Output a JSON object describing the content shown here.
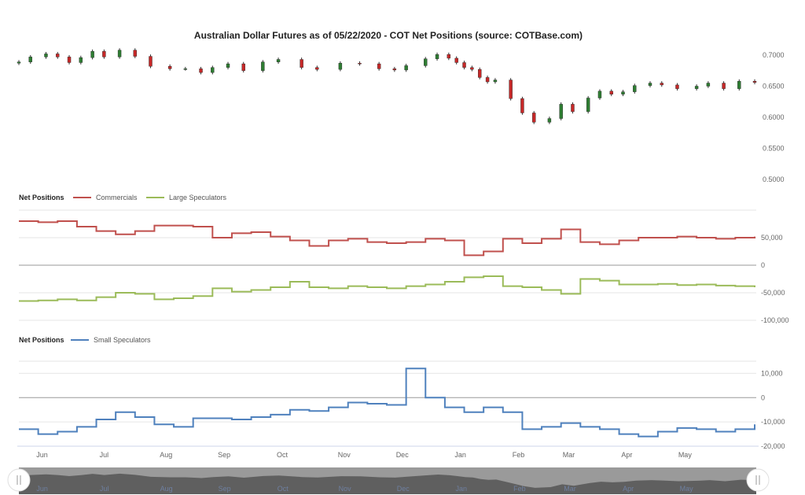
{
  "chart_data": [
    {
      "type": "candlestick",
      "title": "Australian Dollar Futures as of 05/22/2020 - COT Net Positions (source: COTBase.com)",
      "y_ticks": [
        "0.7000",
        "0.6500",
        "0.6000",
        "0.5500",
        "0.5000"
      ],
      "ylim": [
        0.5,
        0.7
      ],
      "up_color": "#2e7d32",
      "down_color": "#c62828",
      "x": [
        0,
        0.3,
        0.7,
        1,
        1.3,
        1.6,
        1.9,
        2.2,
        2.6,
        3,
        3.4,
        3.9,
        4.3,
        4.7,
        5,
        5.4,
        5.8,
        6.3,
        6.7,
        7.3,
        7.7,
        8.3,
        8.8,
        9.3,
        9.7,
        10,
        10.5,
        10.8,
        11.1,
        11.3,
        11.5,
        11.7,
        11.9,
        12.1,
        12.3,
        12.7,
        13,
        13.3,
        13.7,
        14,
        14.3,
        14.7,
        15,
        15.3,
        15.6,
        15.9,
        16.3,
        16.6,
        17,
        17.5,
        17.8,
        18.2,
        18.6,
        19
      ],
      "close": [
        0.689,
        0.697,
        0.702,
        0.697,
        0.688,
        0.696,
        0.706,
        0.697,
        0.708,
        0.698,
        0.682,
        0.678,
        0.678,
        0.672,
        0.68,
        0.686,
        0.675,
        0.689,
        0.693,
        0.68,
        0.677,
        0.687,
        0.686,
        0.678,
        0.676,
        0.683,
        0.694,
        0.701,
        0.695,
        0.688,
        0.68,
        0.677,
        0.664,
        0.657,
        0.66,
        0.63,
        0.607,
        0.592,
        0.598,
        0.621,
        0.609,
        0.631,
        0.642,
        0.637,
        0.641,
        0.651,
        0.655,
        0.652,
        0.646,
        0.65,
        0.655,
        0.646,
        0.658,
        0.656
      ]
    },
    {
      "type": "line",
      "legend_title": "Net Positions",
      "y_ticks": [
        "50,000",
        "0",
        "-50,000",
        "-100,000"
      ],
      "ylim": [
        -100000,
        100000
      ],
      "series": [
        {
          "name": "Commercials",
          "color": "#c0504d",
          "x": [
            0,
            0.5,
            1,
            1.5,
            2,
            2.5,
            3,
            3.5,
            4,
            4.5,
            5,
            5.5,
            6,
            6.5,
            7,
            7.5,
            8,
            8.5,
            9,
            9.5,
            10,
            10.5,
            11,
            11.5,
            12,
            12.5,
            13,
            13.5,
            14,
            14.5,
            15,
            15.5,
            16,
            16.5,
            17,
            17.5,
            18,
            18.5,
            19
          ],
          "y": [
            80000,
            78000,
            80000,
            70000,
            62000,
            56000,
            62000,
            72000,
            72000,
            70000,
            50000,
            58000,
            60000,
            52000,
            45000,
            35000,
            45000,
            48000,
            42000,
            40000,
            42000,
            48000,
            45000,
            18000,
            25000,
            48000,
            40000,
            48000,
            65000,
            42000,
            38000,
            45000,
            50000,
            50000,
            52000,
            50000,
            48000,
            50000,
            52000
          ]
        },
        {
          "name": "Large Speculators",
          "color": "#9bbb59",
          "x": [
            0,
            0.5,
            1,
            1.5,
            2,
            2.5,
            3,
            3.5,
            4,
            4.5,
            5,
            5.5,
            6,
            6.5,
            7,
            7.5,
            8,
            8.5,
            9,
            9.5,
            10,
            10.5,
            11,
            11.5,
            12,
            12.5,
            13,
            13.5,
            14,
            14.5,
            15,
            15.5,
            16,
            16.5,
            17,
            17.5,
            18,
            18.5,
            19
          ],
          "y": [
            -65000,
            -64000,
            -62000,
            -64000,
            -58000,
            -50000,
            -52000,
            -62000,
            -60000,
            -56000,
            -42000,
            -48000,
            -45000,
            -40000,
            -30000,
            -40000,
            -42000,
            -38000,
            -40000,
            -42000,
            -38000,
            -35000,
            -30000,
            -22000,
            -20000,
            -38000,
            -40000,
            -45000,
            -52000,
            -25000,
            -28000,
            -35000,
            -35000,
            -34000,
            -36000,
            -35000,
            -37000,
            -38000,
            -40000
          ]
        }
      ]
    },
    {
      "type": "line",
      "legend_title": "Net Positions",
      "y_ticks": [
        "10,000",
        "0",
        "-10,000",
        "-20,000"
      ],
      "ylim": [
        -20000,
        15000
      ],
      "series": [
        {
          "name": "Small Speculators",
          "color": "#4f81bd",
          "x": [
            0,
            0.5,
            1,
            1.5,
            2,
            2.5,
            3,
            3.5,
            4,
            4.5,
            5,
            5.5,
            6,
            6.5,
            7,
            7.5,
            8,
            8.5,
            9,
            9.5,
            10,
            10.5,
            11,
            11.5,
            12,
            12.5,
            13,
            13.5,
            14,
            14.5,
            15,
            15.5,
            16,
            16.5,
            17,
            17.5,
            18,
            18.5,
            19
          ],
          "y": [
            -13000,
            -15000,
            -14000,
            -12000,
            -9000,
            -6000,
            -8000,
            -11000,
            -12000,
            -8500,
            -8500,
            -9000,
            -8000,
            -7000,
            -5000,
            -5500,
            -4000,
            -2000,
            -2500,
            -3000,
            12000,
            0,
            -4000,
            -6000,
            -4000,
            -6000,
            -13000,
            -12000,
            -10500,
            -12000,
            -13000,
            -15000,
            -16000,
            -14000,
            -12500,
            -13000,
            -14000,
            -13000,
            -11000
          ]
        }
      ]
    }
  ],
  "x_axis": {
    "months": [
      "Jun",
      "Jul",
      "Aug",
      "Sep",
      "Oct",
      "Nov",
      "Dec",
      "Jan",
      "Feb",
      "Mar",
      "Apr",
      "May"
    ],
    "positions": [
      0.6,
      2.2,
      3.8,
      5.3,
      6.8,
      8.4,
      9.9,
      11.4,
      12.9,
      14.2,
      15.7,
      17.2
    ],
    "range": [
      0,
      19
    ]
  },
  "navigator": {
    "months": [
      "Jun",
      "Jul",
      "Aug",
      "Sep",
      "Oct",
      "Nov",
      "Dec",
      "Jan",
      "Feb",
      "Mar",
      "Apr",
      "May"
    ]
  }
}
